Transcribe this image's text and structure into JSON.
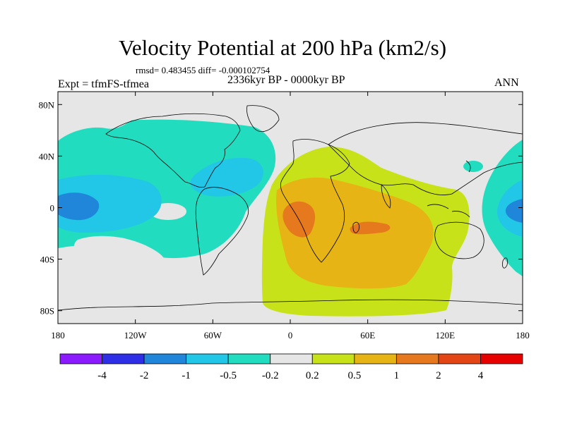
{
  "chart_data": {
    "type": "heatmap",
    "title": "Velocity Potential at 200 hPa (km2/s)",
    "stats": "rmsd= 0.483455 diff= -0.000102754",
    "left_subtitle": "Expt = tfmFS-tfmea",
    "center_subtitle": "2336kyr BP - 0000kyr BP",
    "right_subtitle": "ANN",
    "x_range": [
      -180,
      180
    ],
    "y_range": [
      -90,
      90
    ],
    "x_ticks": [
      {
        "value": -180,
        "label": "180"
      },
      {
        "value": -120,
        "label": "120W"
      },
      {
        "value": -60,
        "label": "60W"
      },
      {
        "value": 0,
        "label": "0"
      },
      {
        "value": 60,
        "label": "60E"
      },
      {
        "value": 120,
        "label": "120E"
      },
      {
        "value": 180,
        "label": "180"
      }
    ],
    "y_ticks": [
      {
        "value": 80,
        "label": "80N"
      },
      {
        "value": 40,
        "label": "40N"
      },
      {
        "value": 0,
        "label": "0"
      },
      {
        "value": -40,
        "label": "40S"
      },
      {
        "value": -80,
        "label": "80S"
      }
    ],
    "colorbar": {
      "levels": [
        "-4",
        "-2",
        "-1",
        "-0.5",
        "-0.2",
        "0.2",
        "0.5",
        "1",
        "2",
        "4"
      ],
      "colors": [
        "#8c1aff",
        "#2e2ee6",
        "#1f86d9",
        "#22c6e6",
        "#22dcbf",
        "#e6e6e6",
        "#c8e21a",
        "#e6b414",
        "#e6781e",
        "#e34614",
        "#e60000"
      ]
    },
    "regions": [
      {
        "level": "-0.2 to -0.5 (teal)",
        "color": "#22dcbf",
        "description": "Western Hemisphere / Pacific broad negative"
      },
      {
        "level": "-0.5 to -1 (cyan)",
        "color": "#22c6e6",
        "description": "Tropical Pacific and North Atlantic"
      },
      {
        "level": "-1 to -2 (blue)",
        "color": "#1f86d9",
        "description": "Central Pacific equator (~160W, 0)"
      },
      {
        "level": "0.2 to 0.5 (yellow-green)",
        "color": "#c8e21a",
        "description": "Atlantic-Africa-Indian Ocean region"
      },
      {
        "level": "0.5 to 1 (orange-yellow)",
        "color": "#e6b414",
        "description": "Africa and Indian Ocean"
      },
      {
        "level": "1 to 2 (orange)",
        "color": "#e6781e",
        "description": "Equatorial Atlantic/Central Africa and Madagascar"
      }
    ]
  }
}
